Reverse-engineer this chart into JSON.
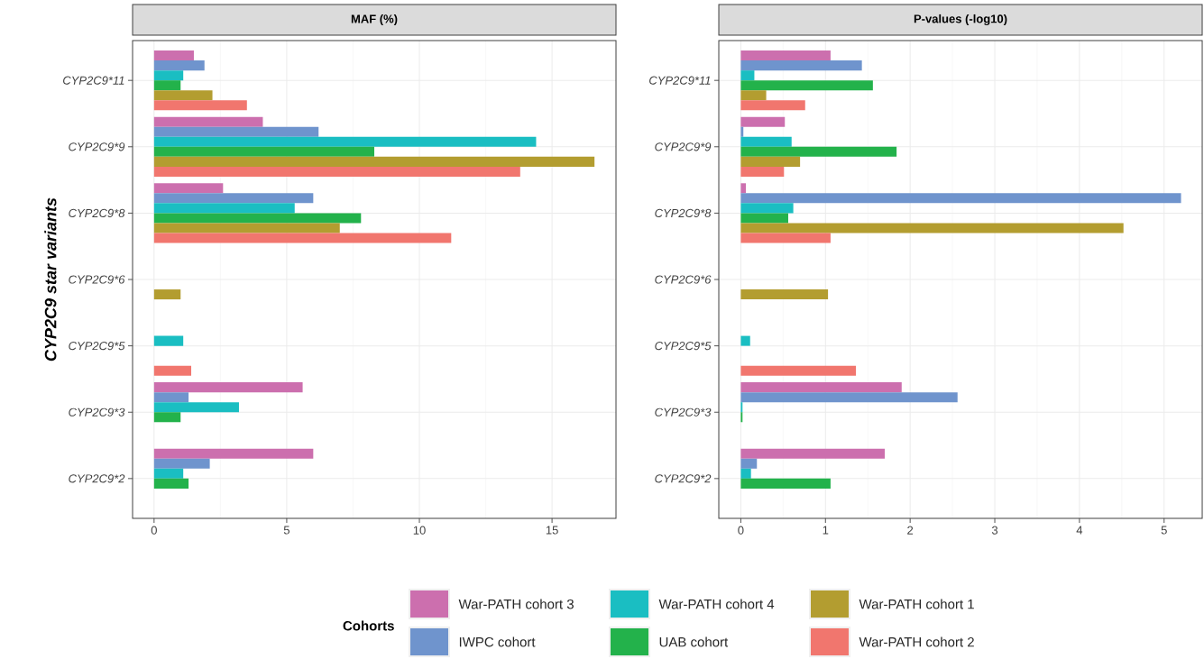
{
  "chart_data": [
    {
      "type": "bar",
      "orientation": "horizontal",
      "title": "MAF (%)",
      "ylabel": "CYP2C9 star variants",
      "legend": "bottom",
      "legend_title": "Cohorts",
      "grid": true,
      "categories": [
        "CYP2C9*11",
        "CYP2C9*9",
        "CYP2C9*8",
        "CYP2C9*6",
        "CYP2C9*5",
        "CYP2C9*3",
        "CYP2C9*2"
      ],
      "xlim": [
        -0.81,
        17.41
      ],
      "xticks": [
        0,
        5,
        10,
        15
      ],
      "series": [
        {
          "name": "War-PATH cohort 3",
          "color": "#cc6fae",
          "values": [
            1.5,
            4.1,
            2.6,
            null,
            null,
            5.6,
            6.0
          ]
        },
        {
          "name": "IWPC cohort",
          "color": "#6f94cd",
          "values": [
            1.9,
            6.2,
            6.0,
            null,
            null,
            1.3,
            2.1
          ]
        },
        {
          "name": "War-PATH cohort 4",
          "color": "#1abec2",
          "values": [
            1.1,
            14.4,
            5.3,
            null,
            1.1,
            3.2,
            1.1
          ]
        },
        {
          "name": "UAB cohort",
          "color": "#23b24b",
          "values": [
            1.0,
            8.3,
            7.8,
            null,
            null,
            1.0,
            1.3
          ]
        },
        {
          "name": "War-PATH cohort 1",
          "color": "#b39d30",
          "values": [
            2.2,
            16.6,
            7.0,
            1.0,
            null,
            null,
            null
          ]
        },
        {
          "name": "War-PATH cohort 2",
          "color": "#f1766e",
          "values": [
            3.5,
            13.8,
            11.2,
            null,
            1.4,
            null,
            null
          ]
        }
      ]
    },
    {
      "type": "bar",
      "orientation": "horizontal",
      "title": "P-values (-log10)",
      "grid": true,
      "categories": [
        "CYP2C9*11",
        "CYP2C9*9",
        "CYP2C9*8",
        "CYP2C9*6",
        "CYP2C9*5",
        "CYP2C9*3",
        "CYP2C9*2"
      ],
      "xlim": [
        -0.26,
        5.45
      ],
      "xticks": [
        0,
        1,
        2,
        3,
        4,
        5
      ],
      "series": [
        {
          "color": "#cc6fae",
          "values": [
            1.06,
            0.52,
            0.06,
            null,
            null,
            1.9,
            1.7
          ]
        },
        {
          "color": "#6f94cd",
          "values": [
            1.43,
            0.03,
            5.2,
            null,
            null,
            2.56,
            0.19
          ]
        },
        {
          "color": "#1abec2",
          "values": [
            0.16,
            0.6,
            0.62,
            null,
            0.11,
            0.02,
            0.12
          ]
        },
        {
          "color": "#23b24b",
          "values": [
            1.56,
            1.84,
            0.56,
            null,
            null,
            0.02,
            1.06
          ]
        },
        {
          "color": "#b39d30",
          "values": [
            0.3,
            0.7,
            4.52,
            1.03,
            null,
            null,
            null
          ]
        },
        {
          "color": "#f1766e",
          "values": [
            0.76,
            0.51,
            1.06,
            null,
            1.36,
            null,
            null
          ]
        }
      ]
    }
  ]
}
